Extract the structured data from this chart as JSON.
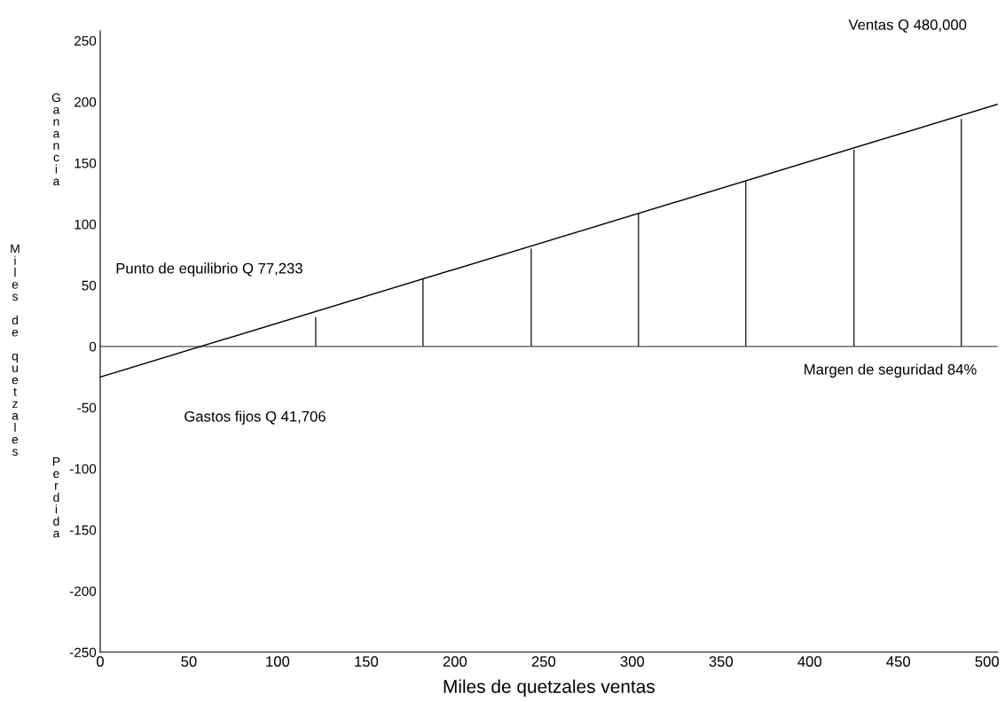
{
  "chart_data": {
    "type": "line",
    "xlabel": "Miles de quetzales ventas",
    "ylabel": "Miles de quetzales",
    "series": [
      {
        "color": "#000000",
        "x": [
          0,
          506
        ],
        "values": [
          -25,
          198
        ]
      },
      {
        "type": "bar",
        "color": "#000000",
        "x": [
          121.5,
          182,
          243,
          303.5,
          364,
          425,
          485.5
        ],
        "values": [
          24,
          55,
          80,
          109,
          135,
          161,
          186
        ]
      }
    ],
    "xlim": [
      0,
      506
    ],
    "xticks": [
      0,
      50,
      100,
      150,
      200,
      250,
      300,
      350,
      400,
      450,
      500
    ],
    "ylim": [
      -250,
      258
    ],
    "yticks": [
      -250,
      -200,
      -150,
      -100,
      -50,
      0,
      50,
      100,
      150,
      200,
      250
    ],
    "ref_lines": [
      {
        "axis": "y",
        "value": 0,
        "color": "#808080"
      }
    ],
    "annotations": [
      "Ventas Q 480,000",
      "Punto de equilibrio Q 77,233",
      "Margen de seguridad 84%",
      "Gastos fijos Q 41,706",
      "Ganancia",
      "Perdida"
    ],
    "grid": false,
    "legend": false
  }
}
